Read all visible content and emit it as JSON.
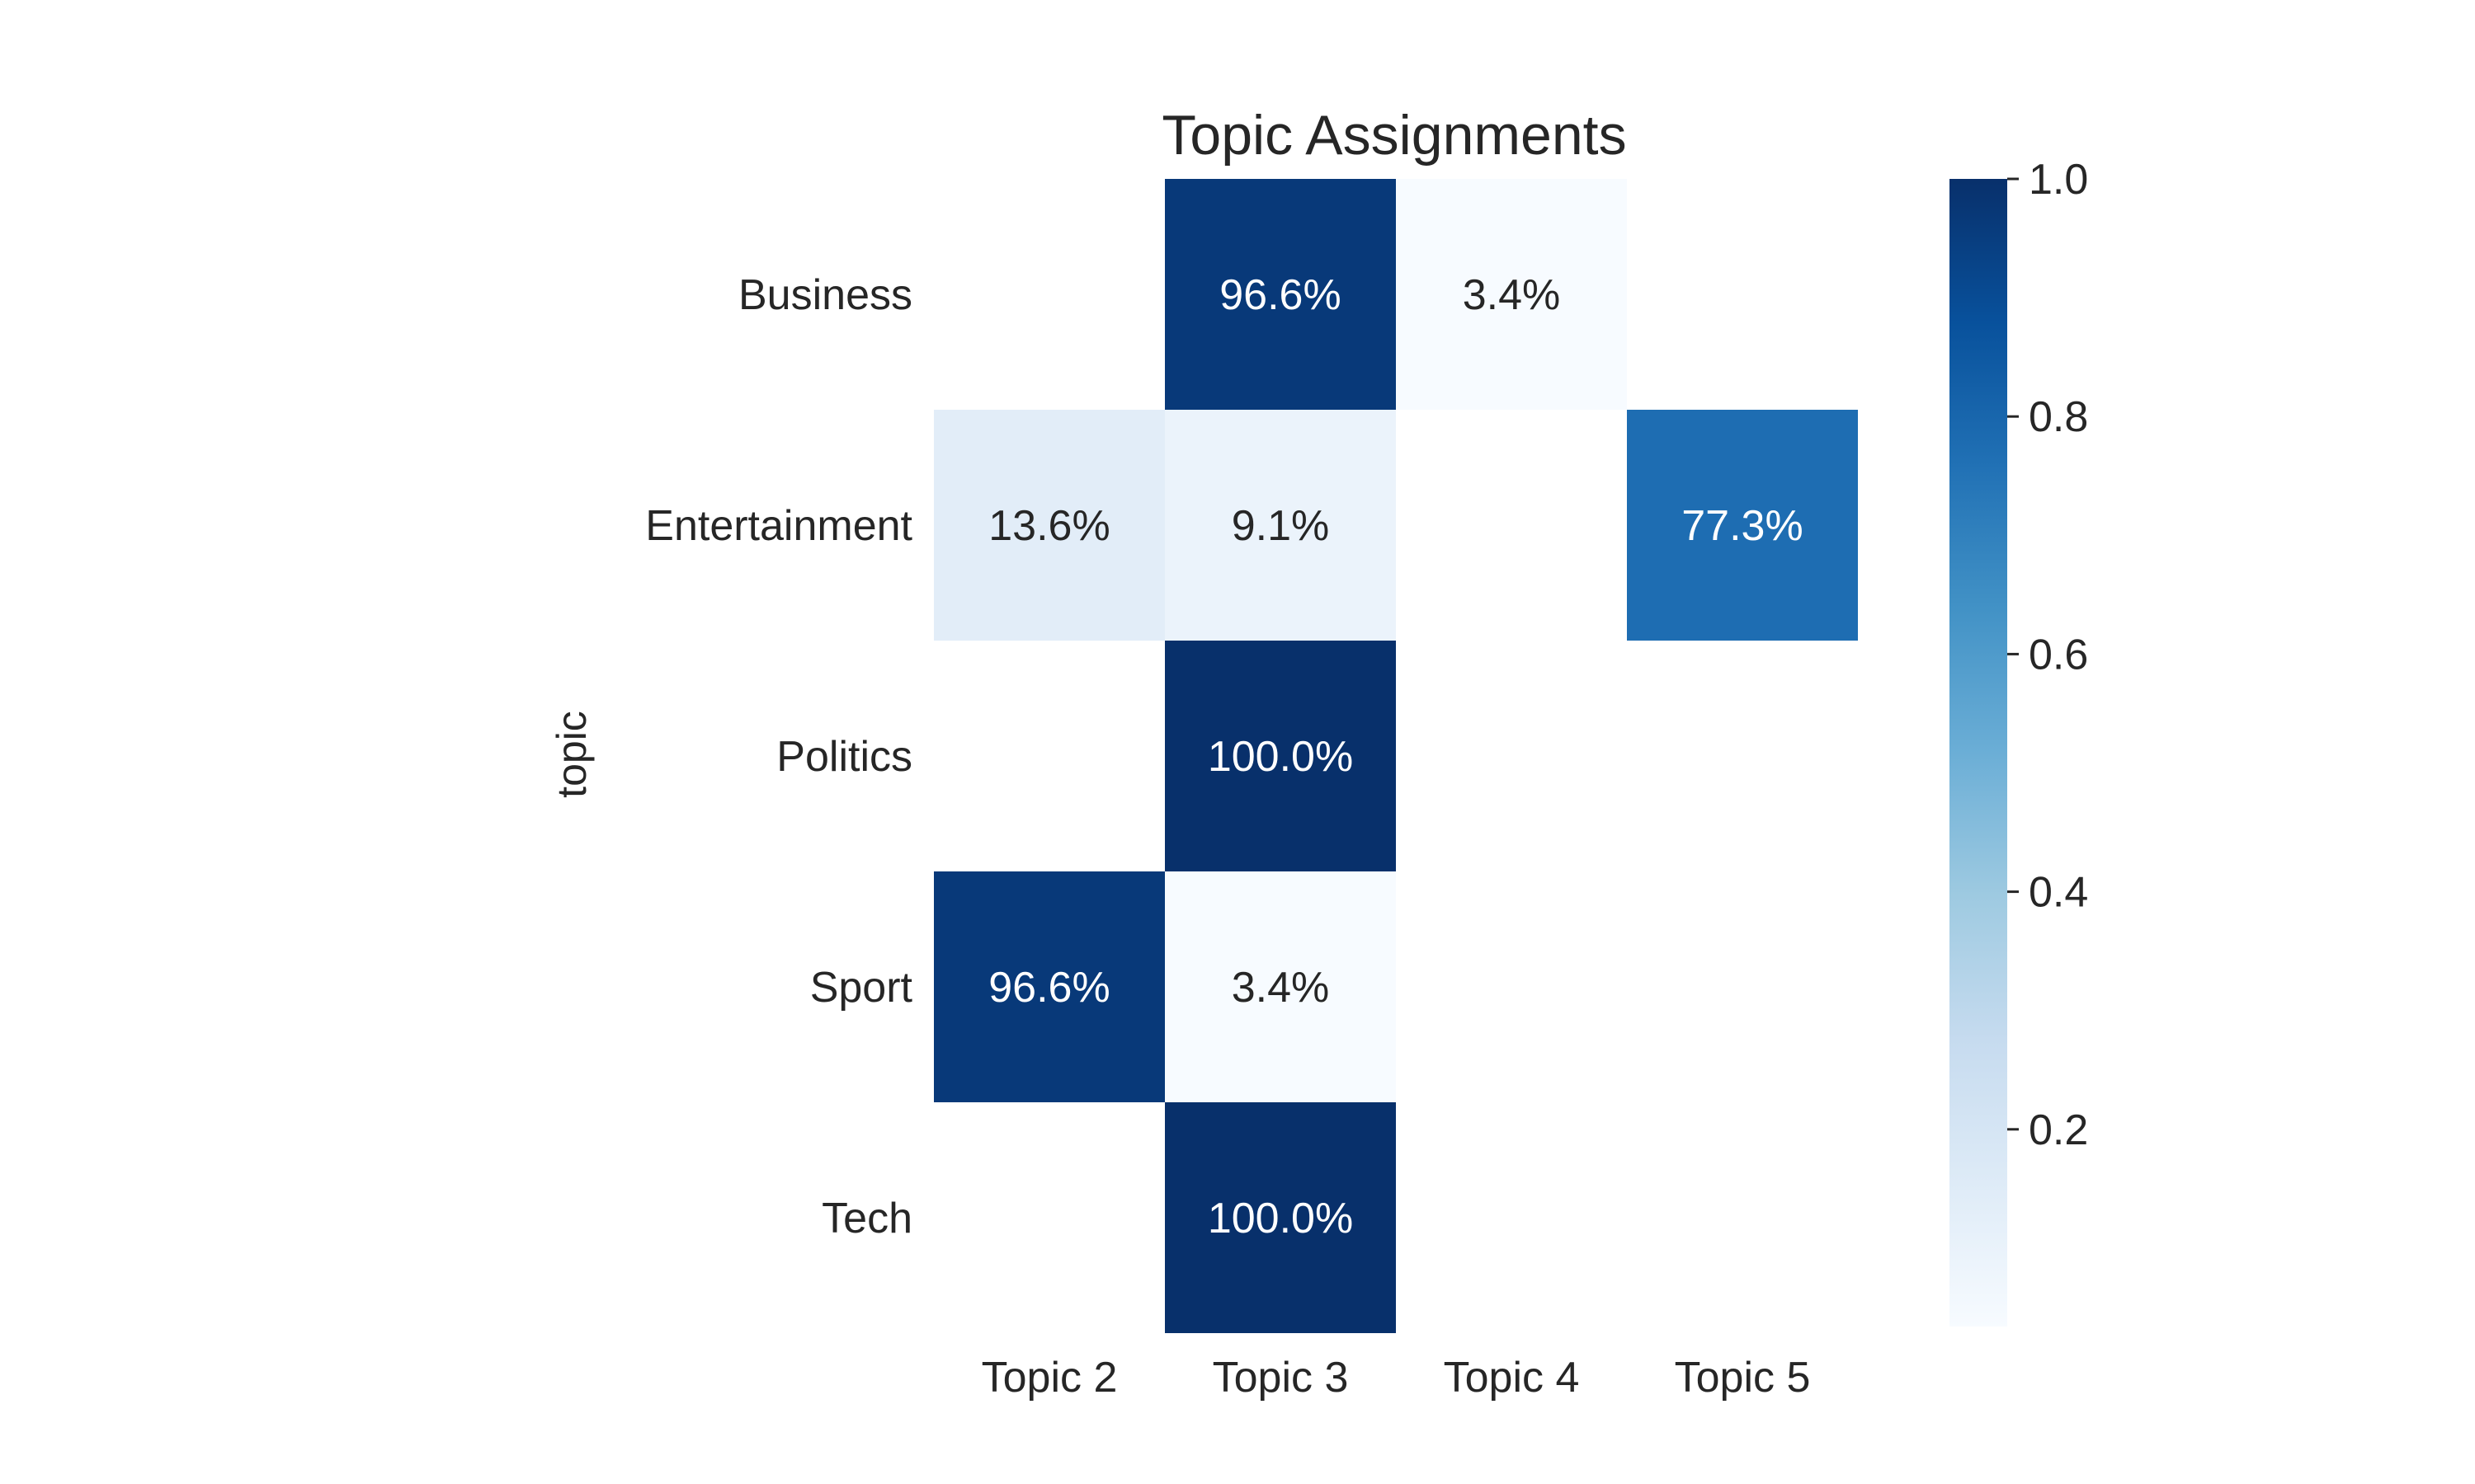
{
  "chart_data": {
    "type": "heatmap",
    "title": "Topic Assignments",
    "ylabel": "topic",
    "xlabel": "",
    "x_categories": [
      "Topic 2",
      "Topic 3",
      "Topic 4",
      "Topic 5"
    ],
    "y_categories": [
      "Business",
      "Entertainment",
      "Politics",
      "Sport",
      "Tech"
    ],
    "values": [
      [
        null,
        0.966,
        0.034,
        null
      ],
      [
        0.136,
        0.091,
        null,
        0.773
      ],
      [
        null,
        1.0,
        null,
        null
      ],
      [
        0.966,
        0.034,
        null,
        null
      ],
      [
        null,
        1.0,
        null,
        null
      ]
    ],
    "cell_labels": [
      [
        "",
        "96.6%",
        "3.4%",
        ""
      ],
      [
        "13.6%",
        "9.1%",
        "",
        "77.3%"
      ],
      [
        "",
        "100.0%",
        "",
        ""
      ],
      [
        "96.6%",
        "3.4%",
        "",
        ""
      ],
      [
        "",
        "100.0%",
        "",
        ""
      ]
    ],
    "colorbar": {
      "min": 0.034,
      "max": 1.0,
      "ticks": [
        0.2,
        0.4,
        0.6,
        0.8,
        1.0
      ],
      "tick_labels": [
        "0.2",
        "0.4",
        "0.6",
        "0.8",
        "1.0"
      ]
    },
    "colormap": "Blues",
    "legend": "colorbar-right",
    "grid": false
  }
}
